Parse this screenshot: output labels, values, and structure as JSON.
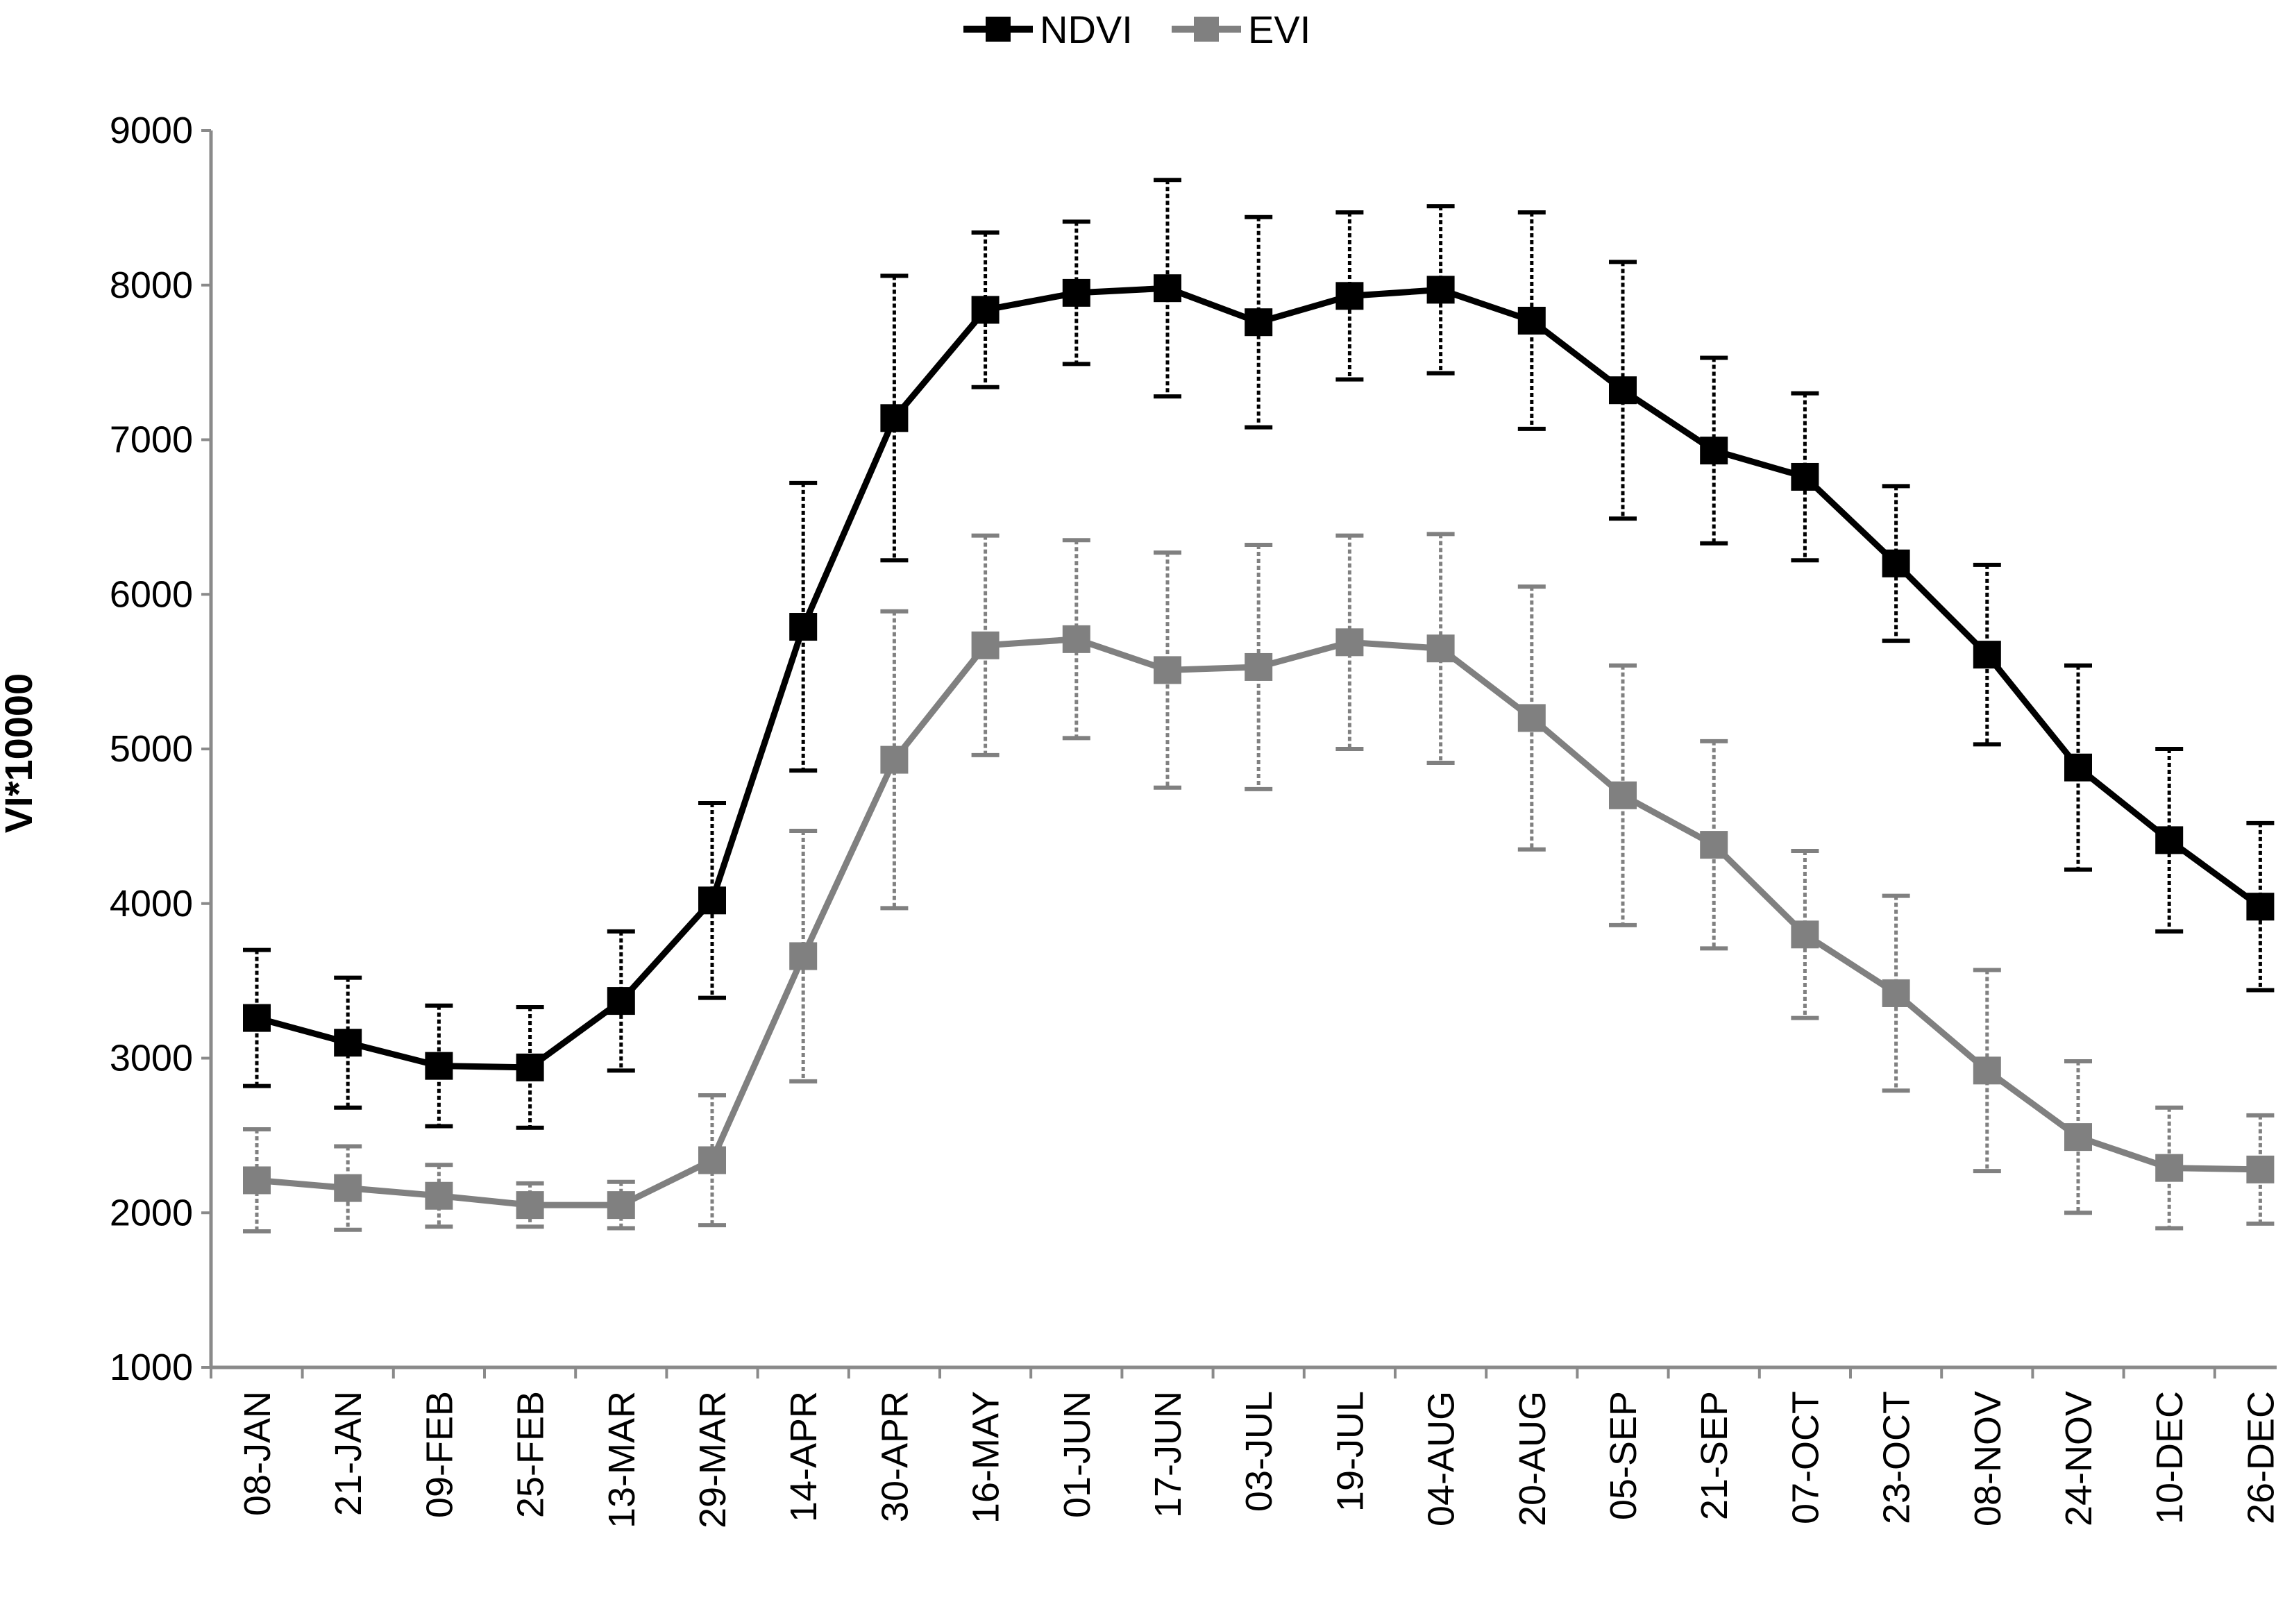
{
  "chart_data": {
    "type": "line",
    "title": "",
    "xlabel": "",
    "ylabel": "VI*10000",
    "ylim": [
      1000,
      9000
    ],
    "yticks": [
      1000,
      2000,
      3000,
      4000,
      5000,
      6000,
      7000,
      8000,
      9000
    ],
    "grid": false,
    "legend_position": "top-center",
    "categories": [
      "08-JAN",
      "21-JAN",
      "09-FEB",
      "25-FEB",
      "13-MAR",
      "29-MAR",
      "14-APR",
      "30-APR",
      "16-MAY",
      "01-JUN",
      "17-JUN",
      "03-JUL",
      "19-JUL",
      "04-AUG",
      "20-AUG",
      "05-SEP",
      "21-SEP",
      "07-OCT",
      "23-OCT",
      "08-NOV",
      "24-NOV",
      "10-DEC",
      "26-DEC"
    ],
    "series": [
      {
        "name": "NDVI",
        "color": "#000000",
        "values": [
          3260,
          3100,
          2950,
          2940,
          3370,
          4020,
          5790,
          7140,
          7840,
          7950,
          7980,
          7760,
          7930,
          7970,
          7770,
          7320,
          6930,
          6760,
          6200,
          5610,
          4880,
          4410,
          3980
        ],
        "error": [
          440,
          420,
          390,
          390,
          450,
          630,
          930,
          920,
          500,
          460,
          700,
          680,
          540,
          540,
          700,
          830,
          600,
          540,
          500,
          580,
          660,
          590,
          540
        ]
      },
      {
        "name": "EVI",
        "color": "#808080",
        "values": [
          2210,
          2160,
          2110,
          2050,
          2050,
          2340,
          3660,
          4930,
          5670,
          5710,
          5510,
          5530,
          5690,
          5650,
          5200,
          4700,
          4380,
          3800,
          3420,
          2920,
          2490,
          2290,
          2280
        ],
        "error": [
          330,
          270,
          200,
          140,
          150,
          420,
          810,
          960,
          710,
          640,
          760,
          790,
          690,
          740,
          850,
          840,
          670,
          540,
          630,
          650,
          490,
          390,
          350
        ]
      }
    ]
  }
}
